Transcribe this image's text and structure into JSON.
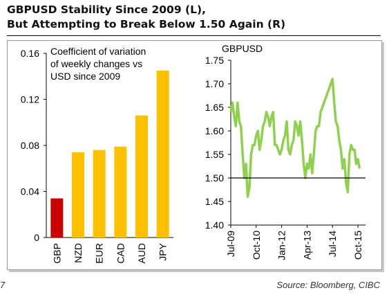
{
  "header": {
    "title_line1": "GBPUSD Stability Since 2009 (L),",
    "title_line2": "But Attempting to Break Below 1.50 Again (R)"
  },
  "footer": {
    "page_number": "7",
    "source": "Source: Bloomberg, CIBC"
  },
  "colors": {
    "bar_highlight": "#cc0000",
    "bar_default": "#ffc000",
    "line_series": "#8fd14f",
    "reference_line": "#000000"
  },
  "chart_data": [
    {
      "type": "bar",
      "title": "",
      "annotation_lines": [
        "Coefficient of variation",
        "of weekly changes vs",
        "USD since 2009"
      ],
      "categories": [
        "GBP",
        "NZD",
        "EUR",
        "CAD",
        "AUD",
        "JPY"
      ],
      "values": [
        0.034,
        0.074,
        0.076,
        0.079,
        0.106,
        0.145
      ],
      "highlight_category": "GBP",
      "ylim": [
        0,
        0.16
      ],
      "yticks": [
        0,
        0.04,
        0.08,
        0.12,
        0.16
      ],
      "ytick_labels": [
        "0",
        "0.04",
        "0.08",
        "0.12",
        "0.16"
      ],
      "grid": false
    },
    {
      "type": "line",
      "title": "GBPUSD",
      "series": [
        {
          "x": [
            "2009-07",
            "2009-08",
            "2009-09",
            "2009-10",
            "2009-11",
            "2009-12",
            "2010-01",
            "2010-02",
            "2010-03",
            "2010-04",
            "2010-05",
            "2010-06",
            "2010-07",
            "2010-08",
            "2010-09",
            "2010-10",
            "2010-11",
            "2010-12",
            "2011-01",
            "2011-02",
            "2011-03",
            "2011-04",
            "2011-05",
            "2011-06",
            "2011-07",
            "2011-08",
            "2011-09",
            "2011-10",
            "2011-11",
            "2011-12",
            "2012-01",
            "2012-02",
            "2012-03",
            "2012-04",
            "2012-05",
            "2012-06",
            "2012-07",
            "2012-08",
            "2012-09",
            "2012-10",
            "2012-11",
            "2012-12",
            "2013-01",
            "2013-02",
            "2013-03",
            "2013-04",
            "2013-05",
            "2013-06",
            "2013-07",
            "2013-08",
            "2013-09",
            "2013-10",
            "2013-11",
            "2013-12",
            "2014-01",
            "2014-02",
            "2014-03",
            "2014-04",
            "2014-05",
            "2014-06",
            "2014-07",
            "2014-08",
            "2014-09",
            "2014-10",
            "2014-11",
            "2014-12",
            "2015-01",
            "2015-02",
            "2015-03",
            "2015-04",
            "2015-05",
            "2015-06",
            "2015-07",
            "2015-08",
            "2015-09",
            "2015-10",
            "2015-11"
          ],
          "values": [
            1.64,
            1.66,
            1.63,
            1.61,
            1.66,
            1.62,
            1.61,
            1.55,
            1.5,
            1.53,
            1.46,
            1.48,
            1.55,
            1.57,
            1.57,
            1.59,
            1.6,
            1.56,
            1.58,
            1.61,
            1.62,
            1.64,
            1.63,
            1.61,
            1.63,
            1.64,
            1.57,
            1.57,
            1.56,
            1.55,
            1.56,
            1.58,
            1.59,
            1.62,
            1.56,
            1.55,
            1.57,
            1.58,
            1.62,
            1.61,
            1.59,
            1.62,
            1.58,
            1.53,
            1.5,
            1.53,
            1.52,
            1.55,
            1.51,
            1.55,
            1.6,
            1.61,
            1.61,
            1.64,
            1.65,
            1.66,
            1.67,
            1.68,
            1.69,
            1.7,
            1.71,
            1.66,
            1.62,
            1.61,
            1.58,
            1.56,
            1.52,
            1.54,
            1.49,
            1.47,
            1.55,
            1.57,
            1.56,
            1.56,
            1.53,
            1.54,
            1.52
          ]
        }
      ],
      "reference_line": 1.5,
      "ylim": [
        1.4,
        1.75
      ],
      "yticks": [
        1.4,
        1.45,
        1.5,
        1.55,
        1.6,
        1.65,
        1.7,
        1.75
      ],
      "ytick_labels": [
        "1.40",
        "1.45",
        "1.50",
        "1.55",
        "1.60",
        "1.65",
        "1.70",
        "1.75"
      ],
      "xticks": [
        "2009-07",
        "2010-10",
        "2012-01",
        "2013-04",
        "2014-07",
        "2015-10"
      ],
      "xtick_labels": [
        "Jul-09",
        "Oct-10",
        "Jan-12",
        "Apr-13",
        "Jul-14",
        "Oct-15"
      ],
      "grid": false
    }
  ]
}
